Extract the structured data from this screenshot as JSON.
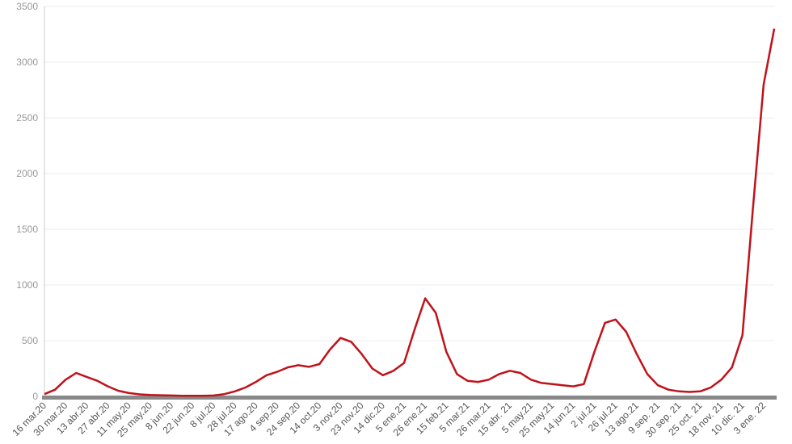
{
  "chart_data": {
    "type": "line",
    "categories": [
      "16 mar.20",
      null,
      "30 mar.20",
      null,
      "13 abr.20",
      null,
      "27 abr.20",
      null,
      "11 may.20",
      null,
      "25 may.20",
      null,
      "8 jun.20",
      null,
      "22 jun.20",
      null,
      "8 jul.20",
      null,
      "28 jul.20",
      null,
      "17 ago.20",
      null,
      "4 sep.20",
      null,
      "24 sep.20",
      null,
      "14 oct.20",
      null,
      "3 nov.20",
      null,
      "23 nov.20",
      null,
      "14 dic.20",
      null,
      "5 ene.21",
      null,
      "26 ene.21",
      null,
      "15 feb.21",
      null,
      "5 mar.21",
      null,
      "26 mar.21",
      null,
      "15 abr. 21",
      null,
      "5 may.21",
      null,
      "25 may.21",
      null,
      "14 jun.21",
      null,
      "2 jul.21",
      null,
      "26 jul.21",
      null,
      "13 ago.21",
      null,
      "9 sep. 21",
      null,
      "30 sep. 21",
      null,
      "25 oct. 21",
      null,
      "18 nov. 21",
      null,
      "10 dic. 21",
      null,
      "3 ene. 22",
      null
    ],
    "values": [
      20,
      60,
      150,
      210,
      175,
      140,
      90,
      50,
      30,
      18,
      12,
      10,
      8,
      6,
      5,
      5,
      8,
      20,
      45,
      80,
      130,
      190,
      220,
      260,
      280,
      265,
      290,
      420,
      525,
      490,
      380,
      250,
      190,
      230,
      300,
      600,
      880,
      750,
      400,
      200,
      140,
      130,
      150,
      200,
      230,
      210,
      150,
      120,
      110,
      100,
      90,
      110,
      400,
      660,
      690,
      580,
      380,
      200,
      100,
      60,
      45,
      40,
      45,
      80,
      150,
      260,
      550,
      1700,
      2800,
      3300
    ],
    "color": "#c0121a",
    "ylim": [
      0,
      3500
    ],
    "yticks": [
      0,
      500,
      1000,
      1500,
      2000,
      2500,
      3000,
      3500
    ],
    "grid": true
  }
}
